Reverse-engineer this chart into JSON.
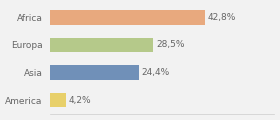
{
  "categories": [
    "Africa",
    "Europa",
    "Asia",
    "America"
  ],
  "values": [
    42.8,
    28.5,
    24.4,
    4.2
  ],
  "labels": [
    "42,8%",
    "28,5%",
    "24,4%",
    "4,2%"
  ],
  "bar_colors": [
    "#e8a97e",
    "#b5c98a",
    "#7090b8",
    "#e8d06a"
  ],
  "background_color": "#f2f2f2",
  "label_fontsize": 6.5,
  "category_fontsize": 6.5,
  "xlim": [
    0,
    62
  ],
  "bar_height": 0.52
}
